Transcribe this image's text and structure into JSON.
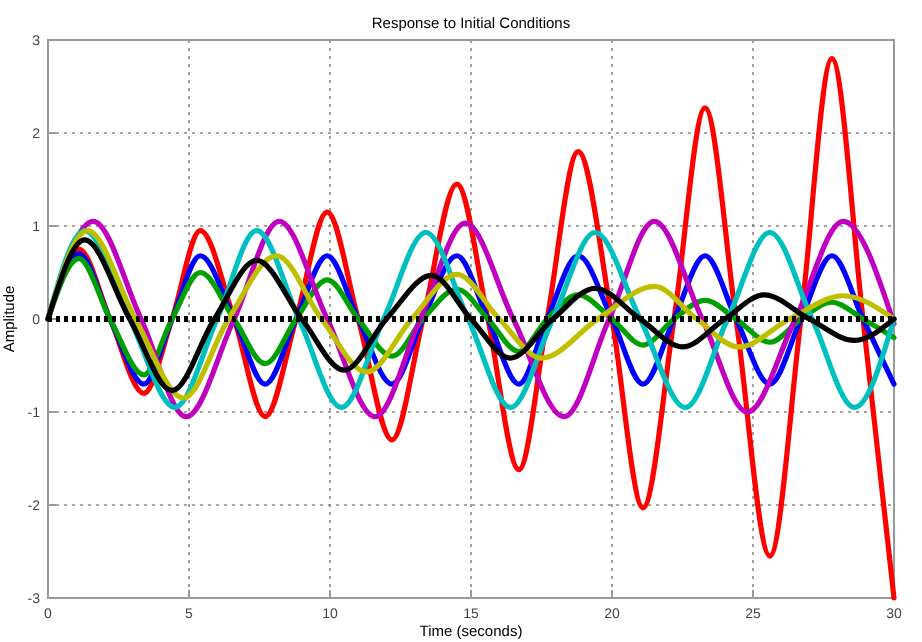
{
  "chart_data": {
    "type": "line",
    "title": "Response to Initial Conditions",
    "xlabel": "Time (seconds)",
    "ylabel": "Amplitude",
    "xlim": [
      0,
      30
    ],
    "ylim": [
      -3,
      3
    ],
    "xticks": [
      0,
      5,
      10,
      15,
      20,
      25,
      30
    ],
    "yticks": [
      -3,
      -2,
      -1,
      0,
      1,
      2,
      3
    ],
    "grid": true,
    "marker": "none",
    "line_style": "solid",
    "ref_lines": [
      {
        "axis": "y",
        "value": 0,
        "color": "#000000",
        "line_style": "dotted"
      }
    ],
    "series": [
      {
        "color": "#ff0000",
        "x": [
          0,
          1.1,
          2.2,
          3.4,
          4.4,
          5.4,
          6.6,
          7.7,
          8.8,
          9.9,
          11.0,
          12.2,
          13.3,
          14.5,
          15.6,
          16.7,
          17.7,
          18.8,
          20.0,
          21.1,
          22.2,
          23.3,
          24.4,
          25.6,
          26.7,
          27.8,
          28.9,
          30
        ],
        "values": [
          0,
          0.75,
          0,
          -0.8,
          0,
          0.95,
          0,
          -1.05,
          0,
          1.15,
          0,
          -1.3,
          0,
          1.45,
          0,
          -1.62,
          0,
          1.8,
          0,
          -2.03,
          0,
          2.27,
          0,
          -2.55,
          0,
          2.8,
          0,
          -3.0
        ]
      },
      {
        "color": "#0000ff",
        "x": [
          0,
          1.1,
          2.2,
          3.4,
          4.4,
          5.4,
          6.6,
          7.7,
          8.8,
          9.9,
          11.0,
          12.2,
          13.3,
          14.5,
          15.6,
          16.7,
          17.7,
          18.8,
          20.0,
          21.1,
          22.2,
          23.3,
          24.4,
          25.6,
          26.7,
          27.8,
          28.9,
          30
        ],
        "values": [
          0,
          0.7,
          0,
          -0.7,
          0,
          0.68,
          0,
          -0.7,
          0,
          0.68,
          0,
          -0.7,
          0,
          0.68,
          0,
          -0.7,
          0,
          0.68,
          0,
          -0.7,
          0,
          0.68,
          0,
          -0.7,
          0,
          0.68,
          0,
          -0.7
        ]
      },
      {
        "color": "#00a000",
        "x": [
          0,
          1.1,
          2.2,
          3.4,
          4.4,
          5.4,
          6.6,
          7.7,
          8.8,
          9.9,
          11.0,
          12.2,
          13.3,
          14.5,
          15.6,
          16.7,
          17.7,
          18.8,
          20.0,
          21.1,
          22.2,
          23.3,
          24.4,
          25.6,
          26.7,
          27.8,
          28.9,
          30
        ],
        "values": [
          0,
          0.65,
          0,
          -0.6,
          0,
          0.5,
          0,
          -0.48,
          0,
          0.42,
          0,
          -0.4,
          0,
          0.32,
          0,
          -0.35,
          0,
          0.26,
          0,
          -0.28,
          0,
          0.2,
          0,
          -0.25,
          0,
          0.18,
          0,
          -0.2
        ]
      },
      {
        "color": "#bf00bf",
        "x": [
          0,
          1.6,
          3.3,
          4.9,
          6.6,
          8.2,
          9.9,
          11.6,
          13.2,
          14.8,
          16.5,
          18.3,
          19.9,
          21.5,
          23.2,
          24.8,
          26.5,
          28.2,
          30
        ],
        "values": [
          0,
          1.05,
          0,
          -1.05,
          0,
          1.05,
          0,
          -1.05,
          0,
          1.03,
          0,
          -1.05,
          0,
          1.05,
          0,
          -1.0,
          0,
          1.05,
          -0.05
        ]
      },
      {
        "color": "#00bfbf",
        "x": [
          0,
          1.3,
          2.9,
          4.5,
          6.0,
          7.4,
          8.9,
          10.4,
          11.9,
          13.4,
          14.9,
          16.4,
          17.9,
          19.4,
          21.0,
          22.6,
          24.1,
          25.6,
          27.1,
          28.6,
          30
        ],
        "values": [
          0,
          0.95,
          0,
          -0.95,
          0,
          0.95,
          0,
          -0.95,
          0,
          0.93,
          0,
          -0.95,
          0,
          0.93,
          0,
          -0.95,
          0,
          0.93,
          0,
          -0.95,
          0
        ]
      },
      {
        "color": "#bfbf00",
        "x": [
          0,
          1.4,
          3.1,
          4.8,
          6.4,
          8.1,
          9.7,
          11.3,
          12.9,
          14.5,
          16.0,
          17.5,
          19.5,
          21.5,
          23.0,
          24.5,
          26.3,
          28.2,
          30
        ],
        "values": [
          0,
          0.95,
          0,
          -0.85,
          0,
          0.68,
          0,
          -0.57,
          0,
          0.48,
          0,
          -0.42,
          0,
          0.35,
          0,
          -0.3,
          0,
          0.25,
          0
        ]
      },
      {
        "color": "#000000",
        "x": [
          0,
          1.3,
          2.9,
          4.4,
          5.9,
          7.4,
          9.0,
          10.5,
          12.0,
          13.6,
          15.0,
          16.4,
          17.9,
          19.4,
          21.0,
          22.5,
          24.0,
          25.4,
          27.0,
          28.6,
          30
        ],
        "values": [
          0,
          0.85,
          0,
          -0.77,
          0,
          0.63,
          0,
          -0.55,
          0,
          0.47,
          0,
          -0.42,
          0,
          0.33,
          0,
          -0.3,
          0,
          0.26,
          0,
          -0.23,
          0
        ]
      }
    ]
  }
}
